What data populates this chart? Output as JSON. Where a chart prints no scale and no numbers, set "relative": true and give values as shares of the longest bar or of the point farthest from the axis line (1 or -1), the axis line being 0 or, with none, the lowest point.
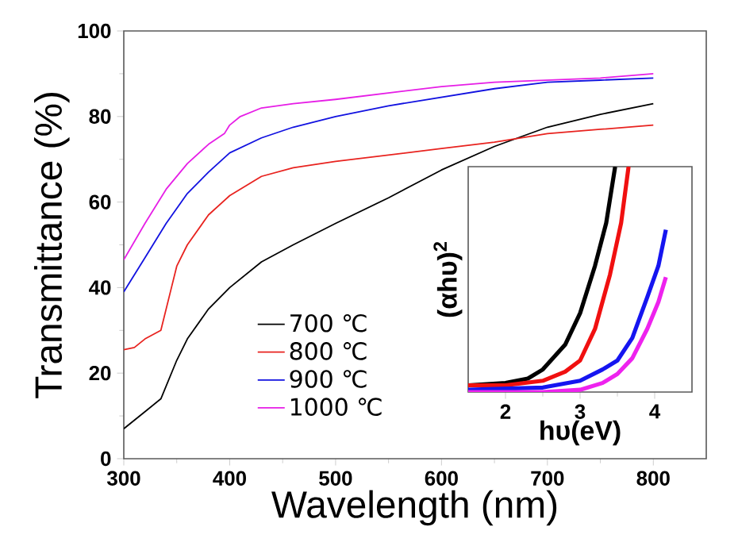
{
  "chart_data": [
    {
      "type": "line",
      "xlabel": "Wavelength (nm)",
      "ylabel": "Transmittance (%)",
      "xlim": [
        300,
        850
      ],
      "ylim": [
        0,
        100
      ],
      "xticks": [
        300,
        400,
        500,
        600,
        700,
        800
      ],
      "yticks": [
        0,
        20,
        40,
        60,
        80,
        100
      ],
      "legend": "bottom left",
      "grid": false,
      "series": [
        {
          "name": "700 ℃",
          "color": "#000000",
          "x": [
            300,
            320,
            335,
            350,
            360,
            380,
            400,
            430,
            460,
            500,
            550,
            600,
            650,
            700,
            750,
            800
          ],
          "values": [
            7,
            11,
            14,
            23,
            28,
            35,
            40,
            46,
            50,
            55,
            61,
            67.5,
            73,
            77.5,
            80.5,
            83
          ]
        },
        {
          "name": "800 ℃",
          "color": "#e8231f",
          "x": [
            300,
            310,
            320,
            335,
            345,
            350,
            360,
            380,
            400,
            430,
            460,
            500,
            550,
            600,
            650,
            700,
            750,
            800
          ],
          "values": [
            25.5,
            26,
            28,
            30,
            40,
            45,
            50,
            57,
            61.5,
            66,
            68,
            69.5,
            71,
            72.5,
            74,
            76,
            77,
            78
          ]
        },
        {
          "name": "900 ℃",
          "color": "#1212e0",
          "x": [
            300,
            320,
            340,
            360,
            380,
            400,
            430,
            460,
            500,
            550,
            600,
            650,
            700,
            750,
            800
          ],
          "values": [
            39,
            47,
            55,
            62,
            67,
            71.5,
            75,
            77.5,
            80,
            82.5,
            84.5,
            86.5,
            88,
            88.5,
            89
          ]
        },
        {
          "name": "1000 ℃",
          "color": "#e61ee6",
          "x": [
            300,
            320,
            340,
            360,
            380,
            395,
            400,
            410,
            430,
            460,
            500,
            550,
            600,
            650,
            700,
            750,
            800
          ],
          "values": [
            46.5,
            55,
            63,
            69,
            73.5,
            76,
            78,
            80,
            82,
            83,
            84,
            85.5,
            87,
            88,
            88.5,
            89,
            90
          ]
        }
      ]
    },
    {
      "type": "line",
      "relative": true,
      "xlabel": "hυ(eV)",
      "ylabel": "(αhυ)$^{2}$",
      "xlim": [
        1.5,
        4.5
      ],
      "xticks": [
        2,
        3,
        4
      ],
      "tick_labels": "x",
      "series": [
        {
          "color": "#000000",
          "x": [
            1.5,
            2.0,
            2.3,
            2.5,
            2.8,
            3.0,
            3.2,
            3.35,
            3.47
          ],
          "values": [
            0.03,
            0.04,
            0.06,
            0.1,
            0.21,
            0.35,
            0.56,
            0.75,
            1.0
          ]
        },
        {
          "color": "#f01010",
          "x": [
            1.5,
            2.0,
            2.5,
            2.8,
            3.0,
            3.2,
            3.4,
            3.55,
            3.65
          ],
          "values": [
            0.03,
            0.03,
            0.05,
            0.09,
            0.14,
            0.28,
            0.52,
            0.75,
            1.0
          ]
        },
        {
          "color": "#1515f0",
          "x": [
            1.5,
            2.5,
            3.0,
            3.3,
            3.5,
            3.7,
            3.9,
            4.05,
            4.15
          ],
          "values": [
            0.01,
            0.02,
            0.05,
            0.1,
            0.14,
            0.24,
            0.42,
            0.56,
            0.72
          ]
        },
        {
          "color": "#ee22ee",
          "x": [
            1.5,
            2.5,
            3.0,
            3.3,
            3.5,
            3.7,
            3.9,
            4.05,
            4.15
          ],
          "values": [
            0.0,
            0.0,
            0.01,
            0.04,
            0.08,
            0.15,
            0.28,
            0.4,
            0.51
          ]
        }
      ]
    }
  ]
}
